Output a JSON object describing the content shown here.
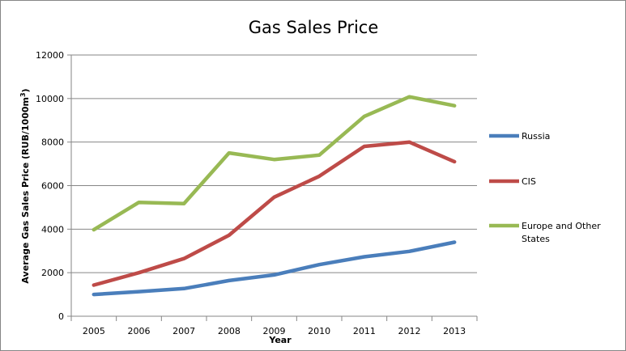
{
  "chart_data": {
    "type": "line",
    "title": "Gas Sales Price",
    "xlabel": "Year",
    "ylabel": "Average Gas Sales Price (RUB/1000m",
    "ylabel_sup": "3",
    "ylabel_end": ")",
    "categories": [
      "2005",
      "2006",
      "2007",
      "2008",
      "2009",
      "2010",
      "2011",
      "2012",
      "2013"
    ],
    "ylim": [
      0,
      12000
    ],
    "yticks": [
      "0",
      "2000",
      "4000",
      "6000",
      "8000",
      "10000",
      "12000"
    ],
    "grid": true,
    "legend_position": "right",
    "series": [
      {
        "name": "Russia",
        "color": "#4A7EBB",
        "values": [
          1000,
          1130,
          1270,
          1640,
          1900,
          2370,
          2730,
          2980,
          3400
        ]
      },
      {
        "name": "CIS",
        "color": "#BE4B48",
        "values": [
          1430,
          2000,
          2650,
          3720,
          5470,
          6430,
          7800,
          8000,
          7100
        ]
      },
      {
        "name": "Europe and Other",
        "name_line2": "States",
        "color": "#98B954",
        "values": [
          3970,
          5230,
          5170,
          7500,
          7200,
          7400,
          9180,
          10080,
          9670
        ]
      }
    ]
  }
}
